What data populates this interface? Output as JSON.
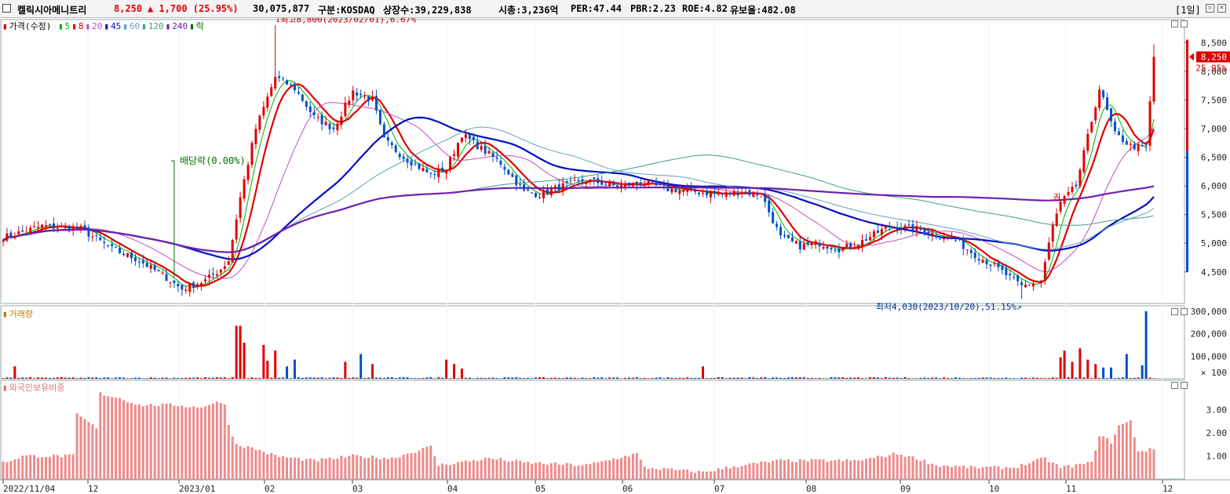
{
  "header": {
    "name": "켈릭시아메니트리",
    "price": "8,250",
    "change": "▲ 1,700 (25.95%)",
    "volume": "30,075,877",
    "market": "구분:KOSDAQ",
    "listed": "상장수:39,229,838",
    "mktcap": "시총:3,236억",
    "per": "PER:47.44",
    "pbr": "PBR:2.23",
    "roe": "ROE:4.82",
    "float": "유보율:482.08",
    "period": "[1일]",
    "colors": {
      "up": "#e00000",
      "down": "#0050c8"
    }
  },
  "legend": {
    "price_label": "가격(수정)",
    "ma": [
      {
        "label": "5",
        "color": "#00b000"
      },
      {
        "label": "8",
        "color": "#e00000"
      },
      {
        "label": "20",
        "color": "#c050c0"
      },
      {
        "label": "45",
        "color": "#0010c0"
      },
      {
        "label": "60",
        "color": "#60a0c0"
      },
      {
        "label": "120",
        "color": "#40a080"
      },
      {
        "label": "240",
        "color": "#7020b0"
      },
      {
        "label": "락",
        "color": "#007000"
      }
    ],
    "volume_label": "거래량",
    "foreign_label": "외국인보유비중"
  },
  "annotations": {
    "high": "최고8,800(2023/02/01),6.67%",
    "low": "최저4,030(2023/10/20),51.15%",
    "dividend": "배당락(0.00%)",
    "last_price": "8,250",
    "last_pct": "25.95%",
    "rights": "권"
  },
  "chart_data": [
    {
      "type": "candlestick",
      "name": "price",
      "y_ticks": [
        "8,500",
        "8,000",
        "7,500",
        "7,000",
        "6,500",
        "6,000",
        "5,500",
        "5,000",
        "4,500"
      ],
      "ylim": [
        3950,
        8900
      ],
      "x_labels": [
        "2022/11/04",
        "12",
        "2023/01",
        "02",
        "03",
        "04",
        "05",
        "06",
        "07",
        "08",
        "09",
        "10",
        "11",
        "12"
      ],
      "close_anchors": [
        [
          0,
          5100
        ],
        [
          10,
          5300
        ],
        [
          20,
          5250
        ],
        [
          28,
          4900
        ],
        [
          35,
          4700
        ],
        [
          42,
          4400
        ],
        [
          46,
          4200
        ],
        [
          52,
          4350
        ],
        [
          56,
          4550
        ],
        [
          58,
          4700
        ],
        [
          61,
          5800
        ],
        [
          65,
          7000
        ],
        [
          70,
          7900
        ],
        [
          75,
          7700
        ],
        [
          80,
          7200
        ],
        [
          85,
          7000
        ],
        [
          90,
          7650
        ],
        [
          95,
          7500
        ],
        [
          98,
          6800
        ],
        [
          103,
          6500
        ],
        [
          110,
          6200
        ],
        [
          114,
          6300
        ],
        [
          118,
          6900
        ],
        [
          124,
          6600
        ],
        [
          128,
          6400
        ],
        [
          134,
          5900
        ],
        [
          138,
          5850
        ],
        [
          144,
          6000
        ],
        [
          150,
          6100
        ],
        [
          158,
          6000
        ],
        [
          165,
          6050
        ],
        [
          170,
          5950
        ],
        [
          178,
          5900
        ],
        [
          185,
          5850
        ],
        [
          190,
          5900
        ],
        [
          195,
          5850
        ],
        [
          200,
          5100
        ],
        [
          205,
          4950
        ],
        [
          210,
          5000
        ],
        [
          215,
          4900
        ],
        [
          220,
          5000
        ],
        [
          228,
          5300
        ],
        [
          235,
          5250
        ],
        [
          240,
          5150
        ],
        [
          245,
          5050
        ],
        [
          250,
          4800
        ],
        [
          255,
          4600
        ],
        [
          262,
          4250
        ],
        [
          267,
          4350
        ],
        [
          270,
          5300
        ],
        [
          272,
          5700
        ],
        [
          276,
          6000
        ],
        [
          282,
          7700
        ],
        [
          286,
          6900
        ],
        [
          290,
          6700
        ],
        [
          294,
          6650
        ],
        [
          296,
          8250
        ]
      ],
      "n_days": 297,
      "high": 8800,
      "low": 4030,
      "last": 8250,
      "moving_averages": [
        5,
        8,
        20,
        45,
        60,
        120,
        240
      ]
    },
    {
      "type": "bar",
      "name": "volume",
      "y_ticks": [
        "300,000",
        "200,000",
        "100,000",
        "× 100"
      ],
      "ylim": [
        0,
        310000
      ],
      "spikes": [
        [
          3,
          55000
        ],
        [
          60,
          235000
        ],
        [
          61,
          235000
        ],
        [
          62,
          160000
        ],
        [
          67,
          150000
        ],
        [
          68,
          80000
        ],
        [
          70,
          125000
        ],
        [
          73,
          55000
        ],
        [
          75,
          85000
        ],
        [
          88,
          75000
        ],
        [
          92,
          110000
        ],
        [
          95,
          65000
        ],
        [
          114,
          85000
        ],
        [
          116,
          65000
        ],
        [
          118,
          45000
        ],
        [
          180,
          55000
        ],
        [
          272,
          95000
        ],
        [
          273,
          125000
        ],
        [
          275,
          75000
        ],
        [
          277,
          135000
        ],
        [
          279,
          85000
        ],
        [
          281,
          65000
        ],
        [
          283,
          50000
        ],
        [
          285,
          50000
        ],
        [
          289,
          110000
        ],
        [
          293,
          60000
        ],
        [
          294,
          300000
        ]
      ]
    },
    {
      "type": "bar",
      "name": "foreign_ownership",
      "y_ticks": [
        "3.00",
        "2.00",
        "1.00"
      ],
      "ylim": [
        0,
        4
      ],
      "level_anchors": [
        [
          0,
          0.7
        ],
        [
          5,
          1.0
        ],
        [
          18,
          1.0
        ],
        [
          19,
          2.8
        ],
        [
          24,
          2.2
        ],
        [
          25,
          3.7
        ],
        [
          30,
          3.5
        ],
        [
          35,
          3.2
        ],
        [
          45,
          3.2
        ],
        [
          50,
          3.1
        ],
        [
          55,
          3.3
        ],
        [
          57,
          3.3
        ],
        [
          58,
          2.3
        ],
        [
          60,
          1.5
        ],
        [
          65,
          1.3
        ],
        [
          70,
          1.0
        ],
        [
          80,
          0.8
        ],
        [
          90,
          1.0
        ],
        [
          100,
          0.9
        ],
        [
          110,
          1.4
        ],
        [
          112,
          0.6
        ],
        [
          125,
          0.9
        ],
        [
          135,
          0.7
        ],
        [
          150,
          0.6
        ],
        [
          163,
          1.1
        ],
        [
          165,
          0.5
        ],
        [
          180,
          0.3
        ],
        [
          190,
          0.6
        ],
        [
          200,
          0.8
        ],
        [
          210,
          0.8
        ],
        [
          220,
          0.8
        ],
        [
          230,
          1.1
        ],
        [
          235,
          0.9
        ],
        [
          240,
          0.6
        ],
        [
          250,
          0.5
        ],
        [
          260,
          0.5
        ],
        [
          268,
          0.9
        ],
        [
          272,
          0.5
        ],
        [
          280,
          0.7
        ],
        [
          282,
          1.9
        ],
        [
          285,
          1.6
        ],
        [
          287,
          2.3
        ],
        [
          290,
          2.5
        ],
        [
          292,
          1.2
        ],
        [
          296,
          1.3
        ]
      ]
    }
  ]
}
